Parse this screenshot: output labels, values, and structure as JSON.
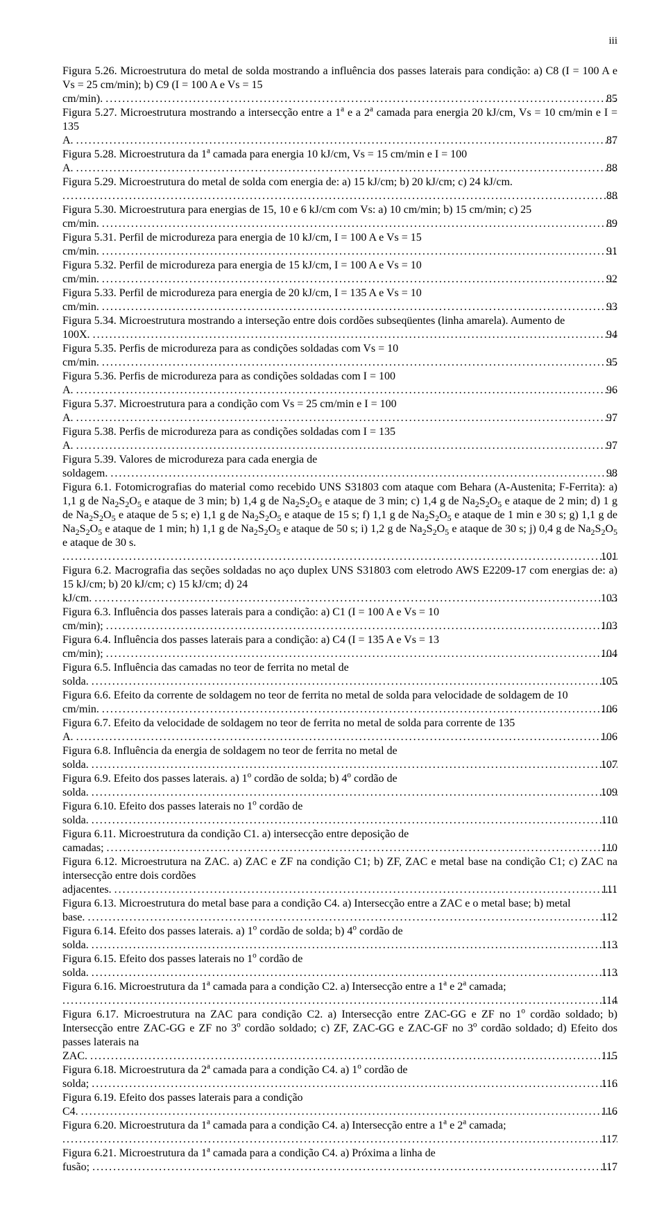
{
  "page_number_label": "iii",
  "entries": [
    {
      "text": "Figura 5.26. Microestrutura do metal de solda mostrando a influência dos passes laterais para condição: a) C8 (I = 100 A e Vs = 25 cm/min); b) C9 (I = 100 A e Vs = 15 cm/min).",
      "page": "85"
    },
    {
      "text": "Figura 5.27. Microestrutura mostrando a intersecção entre a 1ª e a 2ª camada para energia 20 kJ/cm, Vs = 10 cm/min e I = 135 A.",
      "page": "87"
    },
    {
      "text": "Figura 5.28. Microestrutura da 1ª camada para energia 10 kJ/cm, Vs = 15 cm/min e I = 100 A.",
      "page": "88"
    },
    {
      "text": "Figura 5.29. Microestrutura do metal de solda com energia de: a) 15 kJ/cm; b) 20 kJ/cm; c) 24 kJ/cm.",
      "page": "88",
      "trailing_only": true
    },
    {
      "text": "Figura 5.30. Microestrutura para energias de 15, 10 e 6 kJ/cm com Vs: a) 10 cm/min; b) 15 cm/min; c) 25 cm/min.",
      "page": "89"
    },
    {
      "text": "Figura 5.31. Perfil de microdureza para energia de 10 kJ/cm, I = 100 A e Vs = 15 cm/min.",
      "page": "91"
    },
    {
      "text": "Figura 5.32. Perfil de microdureza para energia de 15 kJ/cm, I = 100 A e Vs = 10 cm/min.",
      "page": "92"
    },
    {
      "text": "Figura 5.33. Perfil de microdureza para energia de 20 kJ/cm, I = 135 A e Vs = 10 cm/min.",
      "page": "93"
    },
    {
      "text": "Figura 5.34. Microestrutura mostrando a interseção entre dois cordões subseqüentes (linha amarela). Aumento de 100X.",
      "page": "94"
    },
    {
      "text": "Figura 5.35. Perfis de microdureza para as condições soldadas com Vs = 10 cm/min.",
      "page": "95"
    },
    {
      "text": "Figura 5.36. Perfis de microdureza para as condições soldadas com I = 100 A.",
      "page": "96"
    },
    {
      "text": "Figura 5.37. Microestrutura para a condição com Vs = 25 cm/min e I = 100 A.",
      "page": "97"
    },
    {
      "text": "Figura 5.38. Perfis de microdureza para as condições soldadas com I = 135 A.",
      "page": "97"
    },
    {
      "text": "Figura 5.39. Valores de microdureza para cada energia de soldagem.",
      "page": "98"
    },
    {
      "text": "Figura 6.1. Fotomicrografias do material como recebido UNS S31803 com ataque com Behara (A-Austenita; F-Ferrita): a) 1,1 g de Na₂S₂O₅ e ataque de 3 min; b) 1,4 g de Na₂S₂O₅ e ataque de 3 min; c) 1,4 g de Na₂S₂O₅ e ataque de 2 min; d) 1 g de Na₂S₂O₅ e ataque de 5 s; e) 1,1 g de Na₂S₂O₅ e ataque de 15 s; f) 1,1 g de Na₂S₂O₅ e ataque de 1 min e 30 s; g) 1,1 g de Na₂S₂O₅ e ataque de 1 min; h) 1,1 g de Na₂S₂O₅ e ataque de 50 s; i) 1,2 g de Na₂S₂O₅ e ataque de 30 s; j) 0,4 g de Na₂S₂O₅ e ataque de 30 s.",
      "page": "101",
      "trailing_only": true,
      "has_subscript": true
    },
    {
      "text": "Figura 6.2. Macrografia das seções soldadas no aço duplex UNS S31803 com eletrodo AWS E2209-17 com energias de: a) 15 kJ/cm; b) 20 kJ/cm; c) 15 kJ/cm; d) 24 kJ/cm.",
      "page": "103"
    },
    {
      "text": "Figura 6.3. Influência dos passes laterais para a condição: a) C1 (I = 100 A e Vs = 10 cm/min);",
      "page": "103"
    },
    {
      "text": "Figura 6.4. Influência dos passes laterais para a condição: a) C4 (I = 135 A e Vs = 13 cm/min);",
      "page": "104"
    },
    {
      "text": "Figura 6.5. Influência das camadas no teor de ferrita no metal de solda.",
      "page": "105"
    },
    {
      "text": "Figura 6.6. Efeito da corrente de soldagem no teor de ferrita no metal de solda para velocidade de soldagem de 10 cm/min.",
      "page": "106"
    },
    {
      "text": "Figura 6.7. Efeito da velocidade de soldagem no teor de ferrita no metal de solda para corrente de 135 A.",
      "page": "106"
    },
    {
      "text": "Figura 6.8. Influência da energia de soldagem no teor de ferrita no metal de solda.",
      "page": "107"
    },
    {
      "text": "Figura 6.9. Efeito dos passes laterais. a) 1º cordão de solda; b) 4º cordão de solda.",
      "page": "109",
      "has_superscript": true
    },
    {
      "text": "Figura 6.10. Efeito dos passes laterais no 1º cordão de solda.",
      "page": "110",
      "has_superscript": true
    },
    {
      "text": "Figura 6.11. Microestrutura da condição C1. a) intersecção entre deposição de camadas;",
      "page": "110"
    },
    {
      "text": "Figura 6.12. Microestrutura na ZAC. a) ZAC e ZF na condição C1; b) ZF, ZAC e metal base na condição C1; c) ZAC na intersecção entre dois cordões adjacentes.",
      "page": "111"
    },
    {
      "text": "Figura 6.13. Microestrutura do metal base para a condição C4. a) Intersecção entre a ZAC e o metal base; b) metal base.",
      "page": "112"
    },
    {
      "text": "Figura 6.14. Efeito dos passes laterais. a) 1º cordão de solda; b) 4º cordão de solda.",
      "page": "113",
      "has_superscript": true
    },
    {
      "text": "Figura 6.15. Efeito dos passes laterais no 1º cordão de solda.",
      "page": "113",
      "has_superscript": true
    },
    {
      "text": "Figura 6.16. Microestrutura da 1ª camada para a condição C2. a) Intersecção entre a 1ª e 2ª camada;",
      "page": "114",
      "trailing_only": true
    },
    {
      "text": "Figura 6.17. Microestrutura na ZAC para condição C2. a) Intersecção entre ZAC-GG e ZF no 1º cordão soldado; b) Intersecção entre ZAC-GG e ZF no 3º cordão soldado; c) ZF, ZAC-GG e ZAC-GF no 3º cordão soldado; d) Efeito dos passes laterais na ZAC.",
      "page": "115",
      "has_superscript": true
    },
    {
      "text": "Figura 6.18. Microestrutura da 2ª camada para a condição C4. a) 1º cordão de solda;",
      "page": "116",
      "has_superscript": true
    },
    {
      "text": "Figura 6.19. Efeito dos passes laterais para a condição C4.",
      "page": "116"
    },
    {
      "text": "Figura 6.20. Microestrutura da 1ª camada para a condição C4. a) Intersecção entre a 1ª e 2ª camada;",
      "page": "117",
      "trailing_only": true
    },
    {
      "text": "Figura 6.21. Microestrutura da 1ª camada para a condição C4. a) Próxima a linha de fusão;",
      "page": "117"
    }
  ]
}
